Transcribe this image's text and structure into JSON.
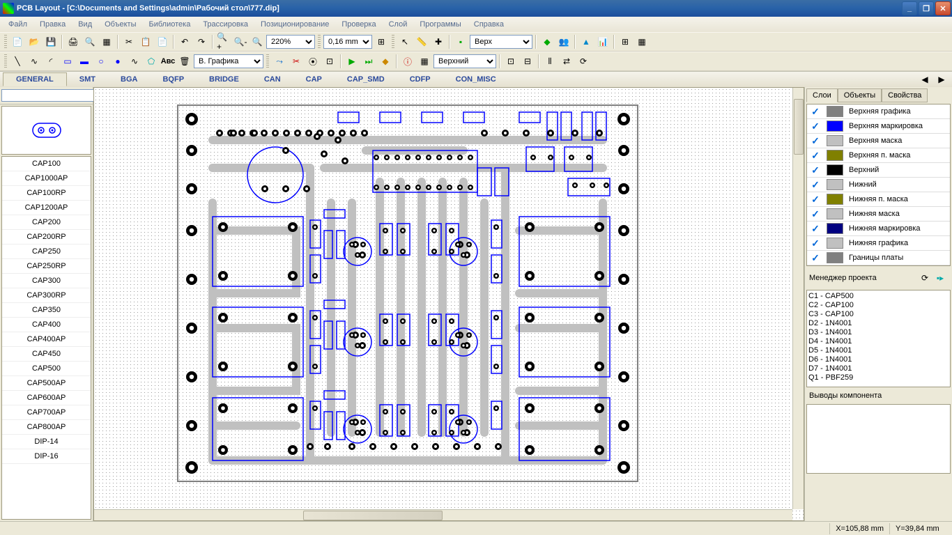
{
  "title": "PCB Layout - [C:\\Documents and Settings\\admin\\Рабочий стол\\777.dip]",
  "menu": [
    "Файл",
    "Правка",
    "Вид",
    "Объекты",
    "Библиотека",
    "Трассировка",
    "Позиционирование",
    "Проверка",
    "Слой",
    "Программы",
    "Справка"
  ],
  "toolbar1": {
    "zoom": "220%",
    "grid": "0,16 mm",
    "layer": "Верх"
  },
  "toolbar2": {
    "graphics": "В. Графика",
    "layer2": "Верхний"
  },
  "lib_tabs": [
    "GENERAL",
    "SMT",
    "BGA",
    "BQFP",
    "BRIDGE",
    "CAN",
    "CAP",
    "CAP_SMD",
    "CDFP",
    "CON_MISC"
  ],
  "active_tab": "GENERAL",
  "components": [
    "CAP100",
    "CAP1000AP",
    "CAP100RP",
    "CAP1200AP",
    "CAP200",
    "CAP200RP",
    "CAP250",
    "CAP250RP",
    "CAP300",
    "CAP300RP",
    "CAP350",
    "CAP400",
    "CAP400AP",
    "CAP450",
    "CAP500",
    "CAP500AP",
    "CAP600AP",
    "CAP700AP",
    "CAP800AP",
    "DIP-14",
    "DIP-16"
  ],
  "right_tabs": [
    "Слои",
    "Объекты",
    "Свойства"
  ],
  "active_rtab": "Слои",
  "layers": [
    {
      "color": "#808080",
      "name": "Верхняя графика"
    },
    {
      "color": "#0000ff",
      "name": "Верхняя маркировка"
    },
    {
      "color": "#c0c0c0",
      "name": "Верхняя маска"
    },
    {
      "color": "#808000",
      "name": "Верхняя п. маска"
    },
    {
      "color": "#000000",
      "name": "Верхний"
    },
    {
      "color": "#c0c0c0",
      "name": "Нижний"
    },
    {
      "color": "#808000",
      "name": "Нижняя п. маска"
    },
    {
      "color": "#c0c0c0",
      "name": "Нижняя маска"
    },
    {
      "color": "#000080",
      "name": "Нижняя маркировка"
    },
    {
      "color": "#c0c0c0",
      "name": "Нижняя графика"
    },
    {
      "color": "#808080",
      "name": "Границы платы"
    }
  ],
  "proj_mgr_title": "Менеджер проекта",
  "project_items": [
    "C1 - CAP500",
    "C2 - CAP100",
    "C3 - CAP100",
    "D2 - 1N4001",
    "D3 - 1N4001",
    "D4 - 1N4001",
    "D5 - 1N4001",
    "D6 - 1N4001",
    "D7 - 1N4001",
    "Q1 - PBF259"
  ],
  "pins_title": "Выводы компонента",
  "status": {
    "x": "X=105,88 mm",
    "y": "Y=39,84 mm"
  },
  "pcb": {
    "outline_color": "#808080",
    "pad_color": "#000000",
    "silk_color": "#0000ff",
    "trace_color": "#c0c0c0",
    "bg": "#ffffff"
  }
}
